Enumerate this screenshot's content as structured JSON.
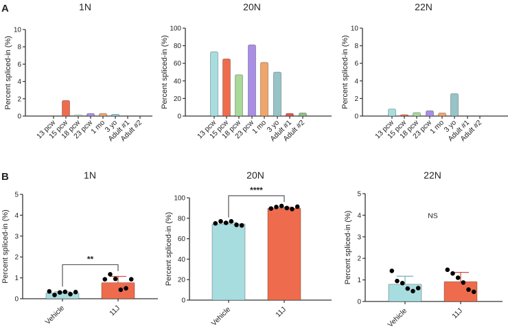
{
  "panels": [
    "A",
    "B"
  ],
  "chart_data": [
    {
      "panel": "A",
      "type": "bar",
      "title": "1N",
      "ylabel": "Percent spliced-in (%)",
      "ylim": [
        0,
        10
      ],
      "yticks": [
        0,
        2,
        4,
        6,
        8,
        10
      ],
      "categories": [
        "13 pcw",
        "15 pcw",
        "18 pcw",
        "23 pcw",
        "1 mo",
        "3 yo",
        "Adult #1",
        "Adult #2"
      ],
      "values": [
        0,
        1.8,
        0.1,
        0.3,
        0.3,
        0.2,
        0,
        0
      ]
    },
    {
      "panel": "A",
      "type": "bar",
      "title": "20N",
      "ylabel": "Percent spliced-in (%)",
      "ylim": [
        0,
        100
      ],
      "yticks": [
        0,
        20,
        40,
        60,
        80,
        100
      ],
      "categories": [
        "13 pcw",
        "15 pcw",
        "18 pcw",
        "23 pcw",
        "1 mo",
        "3 yo",
        "Adult #1",
        "Adult #2"
      ],
      "values": [
        73,
        65,
        47,
        81,
        61,
        50,
        3,
        3.5
      ]
    },
    {
      "panel": "A",
      "type": "bar",
      "title": "22N",
      "ylabel": "Percent spliced-in (%)",
      "ylim": [
        0,
        10
      ],
      "yticks": [
        0,
        2,
        4,
        6,
        8,
        10
      ],
      "categories": [
        "13 pcw",
        "15 pcw",
        "18 pcw",
        "23 pcw",
        "1 mo",
        "3 yo",
        "Adult #1",
        "Adult #2"
      ],
      "values": [
        0.8,
        0.15,
        0.4,
        0.6,
        0.35,
        2.55,
        0,
        0
      ]
    },
    {
      "panel": "B",
      "type": "bar",
      "title": "1N",
      "ylabel": "Percent spliced-in (%)",
      "ylim": [
        0,
        5
      ],
      "yticks": [
        0,
        1,
        2,
        3,
        4,
        5
      ],
      "categories": [
        "Vehicle",
        "11J"
      ],
      "values": [
        0.27,
        0.77
      ],
      "error_upper": [
        0.33,
        1.07
      ],
      "points": [
        [
          0.35,
          0.18,
          0.3,
          0.33,
          0.22,
          0.32
        ],
        [
          0.93,
          1.17,
          0.95,
          0.43,
          0.5,
          0.93
        ]
      ],
      "significance": {
        "label": "**",
        "y": 1.63
      }
    },
    {
      "panel": "B",
      "type": "bar",
      "title": "20N",
      "ylabel": "Percent spliced-in (%)",
      "ylim": [
        0,
        100
      ],
      "yticks": [
        0,
        20,
        40,
        60,
        80,
        100
      ],
      "categories": [
        "Vehicle",
        "11J"
      ],
      "values": [
        74.5,
        89.8
      ],
      "error_upper": [
        75.8,
        90.8
      ],
      "points": [
        [
          75,
          77,
          75.5,
          77,
          73.5,
          73
        ],
        [
          89.5,
          91,
          92,
          90,
          89,
          91.3
        ]
      ],
      "significance": {
        "label": "****",
        "y": 102
      }
    },
    {
      "panel": "B",
      "type": "bar",
      "title": "22N",
      "ylabel": "Percent spliced-in (%)",
      "ylim": [
        0,
        5
      ],
      "yticks": [
        0,
        1,
        2,
        3,
        4,
        5
      ],
      "categories": [
        "Vehicle",
        "11J"
      ],
      "values": [
        0.8,
        0.92
      ],
      "error_upper": [
        1.17,
        1.35
      ],
      "points": [
        [
          1.42,
          0.95,
          0.85,
          0.6,
          0.48,
          0.62
        ],
        [
          1.47,
          1.3,
          1.1,
          0.88,
          0.55,
          0.45
        ]
      ],
      "significance": {
        "label": "NS",
        "y": 4.0,
        "bracket": false
      }
    }
  ],
  "colors": {
    "A": [
      "#a8dde0",
      "#ee6c4d",
      "#a8d89a",
      "#a98ee6",
      "#f0a56a",
      "#96c4c8",
      "#e2574c",
      "#8fbf86"
    ],
    "B": [
      "#a8dde0",
      "#ee6c4d"
    ],
    "axis": "#333333",
    "point": "#000000"
  }
}
